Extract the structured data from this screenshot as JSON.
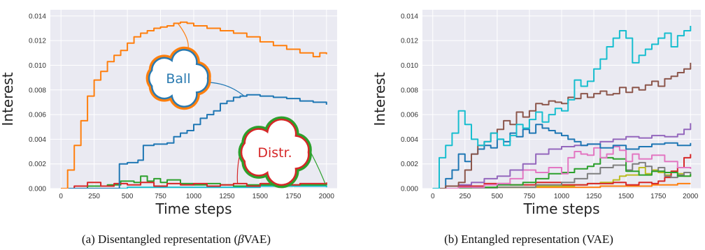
{
  "chart_data": [
    {
      "type": "line",
      "xlabel": "Time steps",
      "ylabel": "Interest",
      "xlim": [
        -80,
        2080
      ],
      "ylim": [
        0,
        0.0145
      ],
      "xticks": [
        "0",
        "250",
        "500",
        "750",
        "1000",
        "1250",
        "1500",
        "1750",
        "2000"
      ],
      "yticks": [
        "0.000",
        "0.002",
        "0.004",
        "0.006",
        "0.008",
        "0.010",
        "0.012",
        "0.014"
      ],
      "grid": true,
      "annotations": [
        {
          "text": "Ball",
          "color": "#2a7ab0",
          "target_series": 1
        },
        {
          "text": "Distr.",
          "color": "#d62728",
          "target_series": 2
        }
      ],
      "series": [
        {
          "color": "#ff7f0e",
          "x": [
            0,
            50,
            100,
            150,
            200,
            250,
            300,
            350,
            400,
            450,
            500,
            550,
            600,
            650,
            700,
            750,
            800,
            850,
            900,
            950,
            1000,
            1100,
            1200,
            1300,
            1400,
            1500,
            1600,
            1700,
            1800,
            1900,
            1950,
            2000
          ],
          "y": [
            0.0,
            0.0015,
            0.0035,
            0.0055,
            0.0075,
            0.0088,
            0.0095,
            0.0103,
            0.0108,
            0.0112,
            0.0118,
            0.0123,
            0.0126,
            0.0128,
            0.013,
            0.0131,
            0.0132,
            0.0134,
            0.0135,
            0.0134,
            0.0132,
            0.013,
            0.0128,
            0.0126,
            0.0123,
            0.0119,
            0.0116,
            0.0113,
            0.011,
            0.0107,
            0.011,
            0.0109
          ]
        },
        {
          "color": "#1f77b4",
          "x": [
            0,
            430,
            440,
            500,
            550,
            580,
            620,
            700,
            800,
            850,
            900,
            950,
            1000,
            1050,
            1100,
            1150,
            1200,
            1250,
            1300,
            1350,
            1400,
            1500,
            1600,
            1700,
            1800,
            1900,
            2000
          ],
          "y": [
            0.0,
            0.0,
            0.002,
            0.0021,
            0.0021,
            0.0023,
            0.0035,
            0.0036,
            0.0037,
            0.0042,
            0.0045,
            0.0047,
            0.0052,
            0.0057,
            0.006,
            0.0063,
            0.0069,
            0.0071,
            0.0074,
            0.0075,
            0.0076,
            0.0075,
            0.0074,
            0.0073,
            0.0071,
            0.007,
            0.0068
          ]
        },
        {
          "color": "#d62728",
          "x": [
            0,
            100,
            200,
            300,
            400,
            500,
            600,
            700,
            800,
            900,
            1000,
            1100,
            1200,
            1300,
            1400,
            1500,
            1600,
            1700,
            1800,
            1900,
            2000
          ],
          "y": [
            0.0,
            0.0002,
            0.0005,
            0.0002,
            0.0004,
            0.0003,
            0.0005,
            0.0002,
            0.0004,
            0.0003,
            0.0004,
            0.0002,
            0.0003,
            0.0004,
            0.0002,
            0.0004,
            0.0004,
            0.0003,
            0.0004,
            0.0004,
            0.0005
          ]
        },
        {
          "color": "#2ca02c",
          "x": [
            0,
            200,
            350,
            450,
            550,
            600,
            650,
            700,
            750,
            800,
            900,
            1000,
            1100,
            1200,
            1300,
            1400,
            1600,
            1800,
            2000
          ],
          "y": [
            0.0,
            0.0002,
            0.0003,
            0.0006,
            0.0005,
            0.001,
            0.0006,
            0.0008,
            0.0005,
            0.0007,
            0.0004,
            0.0003,
            0.0004,
            0.0003,
            0.0002,
            0.0003,
            0.0003,
            0.0003,
            0.0004
          ]
        },
        {
          "color": "#17becf",
          "x": [
            0,
            500,
            1000,
            1500,
            2000
          ],
          "y": [
            0.0,
            0.0001,
            0.0001,
            0.0002,
            0.0001
          ]
        }
      ]
    },
    {
      "type": "line",
      "xlabel": "Time steps",
      "ylabel": "Interest",
      "xlim": [
        -80,
        2080
      ],
      "ylim": [
        0,
        0.0145
      ],
      "xticks": [
        "0",
        "250",
        "500",
        "750",
        "1000",
        "1250",
        "1500",
        "1750",
        "2000"
      ],
      "yticks": [
        "0.000",
        "0.002",
        "0.004",
        "0.006",
        "0.008",
        "0.010",
        "0.012",
        "0.014"
      ],
      "grid": true,
      "series": [
        {
          "color": "#17becf",
          "x": [
            0,
            50,
            100,
            150,
            200,
            250,
            300,
            350,
            400,
            450,
            500,
            550,
            600,
            650,
            700,
            750,
            800,
            850,
            900,
            950,
            1000,
            1050,
            1100,
            1150,
            1200,
            1250,
            1300,
            1350,
            1400,
            1450,
            1500,
            1550,
            1600,
            1650,
            1700,
            1750,
            1800,
            1850,
            1900,
            1950,
            2000
          ],
          "y": [
            0.0,
            0.0025,
            0.0035,
            0.0045,
            0.0063,
            0.0052,
            0.004,
            0.0035,
            0.0038,
            0.0045,
            0.004,
            0.0035,
            0.0043,
            0.0052,
            0.0049,
            0.0056,
            0.0062,
            0.0054,
            0.006,
            0.0065,
            0.0063,
            0.0072,
            0.0088,
            0.0083,
            0.0087,
            0.0097,
            0.0105,
            0.0115,
            0.0122,
            0.0128,
            0.0122,
            0.0102,
            0.0108,
            0.0113,
            0.0117,
            0.0122,
            0.0126,
            0.0115,
            0.0124,
            0.0128,
            0.0132
          ]
        },
        {
          "color": "#8c564b",
          "x": [
            0,
            100,
            200,
            250,
            300,
            350,
            400,
            450,
            500,
            550,
            600,
            650,
            700,
            750,
            800,
            850,
            900,
            950,
            1000,
            1050,
            1100,
            1150,
            1200,
            1250,
            1300,
            1350,
            1400,
            1450,
            1500,
            1550,
            1600,
            1650,
            1700,
            1750,
            1800,
            1850,
            1900,
            1950,
            2000
          ],
          "y": [
            0.0,
            0.0002,
            0.0005,
            0.0015,
            0.0028,
            0.0035,
            0.0038,
            0.0045,
            0.0048,
            0.0055,
            0.0052,
            0.0062,
            0.0058,
            0.0063,
            0.0069,
            0.0068,
            0.0071,
            0.007,
            0.0069,
            0.0074,
            0.0073,
            0.0077,
            0.0074,
            0.0077,
            0.0079,
            0.0076,
            0.0077,
            0.0082,
            0.0078,
            0.0082,
            0.008,
            0.0084,
            0.0087,
            0.0083,
            0.0089,
            0.0091,
            0.0094,
            0.0097,
            0.0102
          ]
        },
        {
          "color": "#1f77b4",
          "x": [
            0,
            100,
            150,
            200,
            250,
            300,
            350,
            400,
            450,
            500,
            550,
            600,
            650,
            700,
            750,
            800,
            850,
            900,
            950,
            1000,
            1050,
            1100,
            1150,
            1200,
            1300,
            1400,
            1500,
            1600,
            1700,
            1800,
            1900,
            2000
          ],
          "y": [
            0.0,
            0.0008,
            0.0015,
            0.0028,
            0.0022,
            0.0028,
            0.0032,
            0.0035,
            0.0033,
            0.004,
            0.0038,
            0.0045,
            0.0042,
            0.0048,
            0.0045,
            0.0052,
            0.0049,
            0.0047,
            0.0045,
            0.0043,
            0.004,
            0.0038,
            0.0035,
            0.0036,
            0.0033,
            0.0035,
            0.0032,
            0.0034,
            0.0036,
            0.0037,
            0.0035,
            0.0037
          ]
        },
        {
          "color": "#9467bd",
          "x": [
            0,
            100,
            200,
            300,
            400,
            500,
            600,
            700,
            800,
            900,
            1000,
            1100,
            1200,
            1300,
            1400,
            1500,
            1600,
            1700,
            1800,
            1900,
            1950,
            2000
          ],
          "y": [
            0.0,
            0.0002,
            0.0003,
            0.0005,
            0.0008,
            0.001,
            0.0015,
            0.002,
            0.0028,
            0.0032,
            0.0034,
            0.0035,
            0.0036,
            0.0038,
            0.004,
            0.0042,
            0.0041,
            0.0043,
            0.0042,
            0.0044,
            0.0048,
            0.0053
          ]
        },
        {
          "color": "#e377c2",
          "x": [
            0,
            200,
            400,
            500,
            600,
            700,
            800,
            900,
            1000,
            1050,
            1100,
            1150,
            1200,
            1250,
            1300,
            1350,
            1400,
            1450,
            1500,
            1550,
            1600,
            1700,
            1800,
            1900,
            2000
          ],
          "y": [
            0.0,
            0.0001,
            0.0003,
            0.0004,
            0.0008,
            0.0015,
            0.0013,
            0.0017,
            0.0012,
            0.0025,
            0.003,
            0.0028,
            0.0027,
            0.0033,
            0.0025,
            0.0028,
            0.0034,
            0.0031,
            0.0022,
            0.0028,
            0.0024,
            0.0027,
            0.0022,
            0.0017,
            0.0016
          ]
        },
        {
          "color": "#2ca02c",
          "x": [
            0,
            300,
            500,
            700,
            800,
            900,
            1000,
            1100,
            1200,
            1250,
            1300,
            1400,
            1500,
            1600,
            1700,
            1800,
            1900,
            2000
          ],
          "y": [
            0.0,
            0.0001,
            0.0003,
            0.0005,
            0.0008,
            0.0012,
            0.0013,
            0.0016,
            0.0018,
            0.002,
            0.0025,
            0.0024,
            0.0014,
            0.0011,
            0.0014,
            0.0013,
            0.001,
            0.0012
          ]
        },
        {
          "color": "#7f7f7f",
          "x": [
            0,
            500,
            800,
            1000,
            1100,
            1200,
            1300,
            1400,
            1500,
            1550,
            1600,
            1650,
            1700,
            1750,
            1800,
            1850,
            1900,
            1950,
            2000
          ],
          "y": [
            0.0,
            0.0001,
            0.0003,
            0.0005,
            0.0008,
            0.0012,
            0.0017,
            0.0019,
            0.0015,
            0.002,
            0.0021,
            0.0018,
            0.0014,
            0.0017,
            0.001,
            0.0009,
            0.0011,
            0.0013,
            0.0012
          ]
        },
        {
          "color": "#d62728",
          "x": [
            0,
            200,
            400,
            600,
            800,
            1000,
            1200,
            1400,
            1500,
            1600,
            1700,
            1750,
            1800,
            1850,
            1900,
            1950,
            2000
          ],
          "y": [
            0.0,
            0.0002,
            0.0004,
            0.0003,
            0.0005,
            0.0003,
            0.0004,
            0.0005,
            0.0003,
            0.0005,
            0.0004,
            0.0006,
            0.0009,
            0.0014,
            0.0017,
            0.0025,
            0.0028
          ]
        },
        {
          "color": "#bcbd22",
          "x": [
            0,
            400,
            800,
            1100,
            1200,
            1300,
            1400,
            1450,
            1500,
            1600,
            1650,
            1700,
            1750,
            1800,
            1850,
            1900,
            1950,
            2000
          ],
          "y": [
            0.0,
            0.0001,
            0.0002,
            0.0003,
            0.0004,
            0.0005,
            0.0007,
            0.001,
            0.0011,
            0.0017,
            0.0012,
            0.0015,
            0.0013,
            0.0011,
            0.0014,
            0.0012,
            0.001,
            0.0011
          ]
        },
        {
          "color": "#ff7f0e",
          "x": [
            0,
            500,
            1000,
            1300,
            1500,
            1700,
            1900,
            2000
          ],
          "y": [
            0.0,
            0.0001,
            0.0001,
            0.0002,
            0.0002,
            0.0003,
            0.0004,
            0.0004
          ]
        }
      ]
    }
  ],
  "captions": [
    {
      "prefix": "(a) Disentangled representation (",
      "math": "β",
      "suffix": "VAE)"
    },
    {
      "prefix": "(b) Entangled representation (VAE)",
      "math": "",
      "suffix": ""
    }
  ]
}
